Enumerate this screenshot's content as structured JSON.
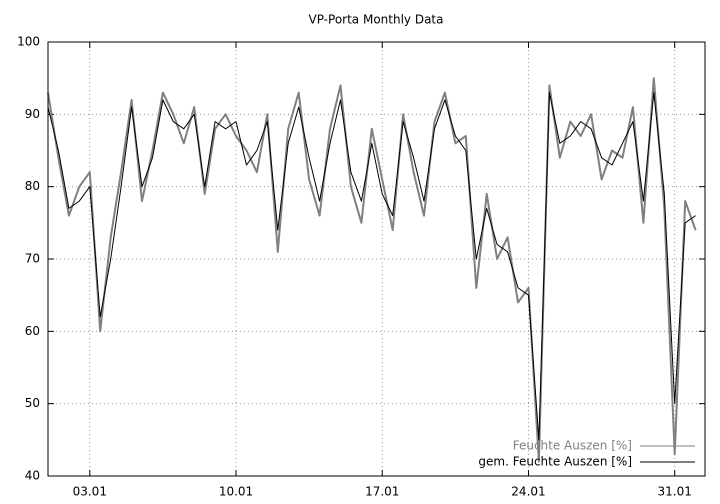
{
  "chart_data": {
    "type": "line",
    "title": "VP-Porta Monthly Data",
    "x": [
      1,
      1.5,
      2,
      2.5,
      3,
      3.5,
      4,
      4.5,
      5,
      5.5,
      6,
      6.5,
      7,
      7.5,
      8,
      8.5,
      9,
      9.5,
      10,
      10.5,
      11,
      11.5,
      12,
      12.5,
      13,
      13.5,
      14,
      14.5,
      15,
      15.5,
      16,
      16.5,
      17,
      17.5,
      18,
      18.5,
      19,
      19.5,
      20,
      20.5,
      21,
      21.5,
      22,
      22.5,
      23,
      23.5,
      24,
      24.5,
      25,
      25.5,
      26,
      26.5,
      27,
      27.5,
      28,
      28.5,
      29,
      29.5,
      30,
      30.5,
      31,
      31.5,
      32
    ],
    "series": [
      {
        "name": "Feuchte Auszen [%]",
        "color": "#808080",
        "values": [
          93,
          84,
          76,
          80,
          82,
          60,
          73,
          82,
          92,
          78,
          85,
          93,
          90,
          86,
          91,
          79,
          88,
          90,
          87,
          85,
          82,
          90,
          71,
          88,
          93,
          81,
          76,
          88,
          94,
          80,
          75,
          88,
          81,
          74,
          90,
          82,
          76,
          89,
          93,
          86,
          87,
          66,
          79,
          70,
          73,
          64,
          66,
          42,
          94,
          84,
          89,
          87,
          90,
          81,
          85,
          84,
          91,
          75,
          95,
          77,
          43,
          78,
          74
        ]
      },
      {
        "name": "gem. Feuchte Auszen [%]",
        "color": "#000000",
        "values": [
          91,
          85,
          77,
          78,
          80,
          62,
          70,
          80,
          91,
          80,
          84,
          92,
          89,
          88,
          90,
          80,
          89,
          88,
          89,
          83,
          85,
          89,
          74,
          86,
          91,
          84,
          78,
          86,
          92,
          82,
          78,
          86,
          79,
          76,
          89,
          84,
          78,
          88,
          92,
          87,
          85,
          70,
          77,
          72,
          71,
          66,
          65,
          45,
          93,
          86,
          87,
          89,
          88,
          84,
          83,
          86,
          89,
          78,
          93,
          79,
          50,
          75,
          76
        ]
      }
    ],
    "xlim": [
      1,
      32.45
    ],
    "xticks": [
      {
        "value": 3,
        "label": "03.01"
      },
      {
        "value": 10,
        "label": "10.01"
      },
      {
        "value": 17,
        "label": "17.01"
      },
      {
        "value": 24,
        "label": "24.01"
      },
      {
        "value": 31,
        "label": "31.01"
      }
    ],
    "ylim": [
      40,
      100
    ],
    "yticks": [
      40,
      50,
      60,
      70,
      80,
      90,
      100
    ],
    "grid": true,
    "legend": "bottom-right"
  }
}
